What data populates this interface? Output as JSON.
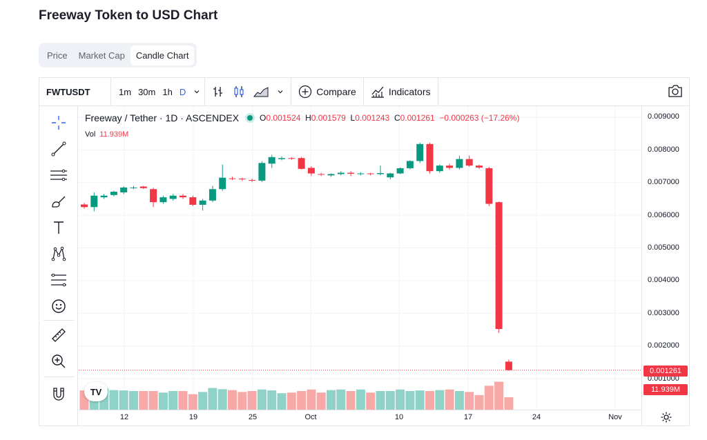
{
  "page": {
    "title": "Freeway Token to USD Chart"
  },
  "tabs": [
    {
      "label": "Price",
      "active": false
    },
    {
      "label": "Market Cap",
      "active": false
    },
    {
      "label": "Candle Chart",
      "active": true
    }
  ],
  "toolbar": {
    "symbol": "FWTUSDT",
    "timeframes": [
      "1m",
      "30m",
      "1h",
      "D"
    ],
    "active_timeframe": "D",
    "compare_label": "Compare",
    "indicators_label": "Indicators"
  },
  "legend": {
    "symbol": "Freeway / Tether · 1D · ASCENDEX",
    "o_key": "O",
    "o": "0.001524",
    "h_key": "H",
    "h": "0.001579",
    "l_key": "L",
    "l": "0.001243",
    "c_key": "C",
    "c": "0.001261",
    "change": "−0.000263 (−17.26%)",
    "vol_label": "Vol",
    "vol_value": "11.939M"
  },
  "price_axis": {
    "labels": [
      "0.009000",
      "0.008000",
      "0.007000",
      "0.006000",
      "0.005000",
      "0.004000",
      "0.003000",
      "0.002000",
      "0.001000"
    ],
    "last_price": "0.001261",
    "last_volume": "11.939M"
  },
  "time_axis": {
    "labels": [
      "12",
      "19",
      "25",
      "Oct",
      "10",
      "17",
      "24",
      "Nov"
    ]
  },
  "logo_text": "TV",
  "colors": {
    "up": "#089981",
    "down": "#f23645",
    "vol_up": "#8fd3c8",
    "vol_down": "#f7a9a7",
    "accent": "#2962ff"
  },
  "chart_data": {
    "type": "candlestick",
    "ylim": [
      0,
      0.0095
    ],
    "candles": [
      {
        "o": 0.00633,
        "h": 0.00638,
        "l": 0.0062,
        "c": 0.00625
      },
      {
        "o": 0.00625,
        "h": 0.0067,
        "l": 0.00612,
        "c": 0.0066
      },
      {
        "o": 0.00655,
        "h": 0.00665,
        "l": 0.0065,
        "c": 0.0066
      },
      {
        "o": 0.00662,
        "h": 0.00675,
        "l": 0.00658,
        "c": 0.00672
      },
      {
        "o": 0.0067,
        "h": 0.00688,
        "l": 0.00665,
        "c": 0.00685
      },
      {
        "o": 0.00685,
        "h": 0.0069,
        "l": 0.0068,
        "c": 0.00685
      },
      {
        "o": 0.00688,
        "h": 0.0069,
        "l": 0.0068,
        "c": 0.00683
      },
      {
        "o": 0.0068,
        "h": 0.00684,
        "l": 0.00625,
        "c": 0.0064
      },
      {
        "o": 0.0064,
        "h": 0.0066,
        "l": 0.00635,
        "c": 0.00655
      },
      {
        "o": 0.0065,
        "h": 0.00665,
        "l": 0.00645,
        "c": 0.0066
      },
      {
        "o": 0.0066,
        "h": 0.00665,
        "l": 0.0065,
        "c": 0.00655
      },
      {
        "o": 0.00655,
        "h": 0.0066,
        "l": 0.00628,
        "c": 0.00632
      },
      {
        "o": 0.00632,
        "h": 0.0065,
        "l": 0.00615,
        "c": 0.00645
      },
      {
        "o": 0.00645,
        "h": 0.0069,
        "l": 0.0064,
        "c": 0.0068
      },
      {
        "o": 0.0068,
        "h": 0.00755,
        "l": 0.00675,
        "c": 0.00715
      },
      {
        "o": 0.00713,
        "h": 0.00718,
        "l": 0.00708,
        "c": 0.00712
      },
      {
        "o": 0.00712,
        "h": 0.00715,
        "l": 0.00705,
        "c": 0.0071
      },
      {
        "o": 0.00708,
        "h": 0.00712,
        "l": 0.00702,
        "c": 0.00706
      },
      {
        "o": 0.00706,
        "h": 0.00765,
        "l": 0.00702,
        "c": 0.0076
      },
      {
        "o": 0.00758,
        "h": 0.00785,
        "l": 0.00745,
        "c": 0.00778
      },
      {
        "o": 0.00772,
        "h": 0.0078,
        "l": 0.00768,
        "c": 0.00775
      },
      {
        "o": 0.00775,
        "h": 0.00778,
        "l": 0.0077,
        "c": 0.00774
      },
      {
        "o": 0.00775,
        "h": 0.00778,
        "l": 0.0074,
        "c": 0.00742
      },
      {
        "o": 0.00745,
        "h": 0.0075,
        "l": 0.0072,
        "c": 0.00728
      },
      {
        "o": 0.00726,
        "h": 0.0073,
        "l": 0.0072,
        "c": 0.00724
      },
      {
        "o": 0.00722,
        "h": 0.00728,
        "l": 0.00718,
        "c": 0.00726
      },
      {
        "o": 0.00726,
        "h": 0.00735,
        "l": 0.00722,
        "c": 0.0073
      },
      {
        "o": 0.0073,
        "h": 0.00735,
        "l": 0.0072,
        "c": 0.00727
      },
      {
        "o": 0.00727,
        "h": 0.00732,
        "l": 0.00722,
        "c": 0.00728
      },
      {
        "o": 0.00728,
        "h": 0.0073,
        "l": 0.00722,
        "c": 0.00726
      },
      {
        "o": 0.00726,
        "h": 0.00752,
        "l": 0.00722,
        "c": 0.00729
      },
      {
        "o": 0.00716,
        "h": 0.0073,
        "l": 0.0071,
        "c": 0.00728
      },
      {
        "o": 0.00728,
        "h": 0.00746,
        "l": 0.00726,
        "c": 0.00744
      },
      {
        "o": 0.00744,
        "h": 0.00768,
        "l": 0.0074,
        "c": 0.00766
      },
      {
        "o": 0.00766,
        "h": 0.00822,
        "l": 0.0076,
        "c": 0.00818
      },
      {
        "o": 0.00818,
        "h": 0.00822,
        "l": 0.00728,
        "c": 0.00735
      },
      {
        "o": 0.00735,
        "h": 0.00755,
        "l": 0.0073,
        "c": 0.00752
      },
      {
        "o": 0.00752,
        "h": 0.00758,
        "l": 0.0074,
        "c": 0.00745
      },
      {
        "o": 0.00745,
        "h": 0.00782,
        "l": 0.0074,
        "c": 0.00772
      },
      {
        "o": 0.00772,
        "h": 0.00783,
        "l": 0.00748,
        "c": 0.00752
      },
      {
        "o": 0.00752,
        "h": 0.00755,
        "l": 0.00742,
        "c": 0.00746
      },
      {
        "o": 0.00744,
        "h": 0.00748,
        "l": 0.00628,
        "c": 0.00635
      },
      {
        "o": 0.0064,
        "h": 0.00642,
        "l": 0.0024,
        "c": 0.00252
      },
      {
        "o": 0.00152,
        "h": 0.00158,
        "l": 0.00124,
        "c": 0.00126
      }
    ],
    "volumes_rel": [
      0.62,
      0.8,
      0.68,
      0.63,
      0.62,
      0.6,
      0.6,
      0.6,
      0.55,
      0.6,
      0.6,
      0.5,
      0.57,
      0.7,
      0.66,
      0.63,
      0.57,
      0.6,
      0.65,
      0.62,
      0.53,
      0.55,
      0.6,
      0.65,
      0.55,
      0.63,
      0.65,
      0.6,
      0.65,
      0.55,
      0.6,
      0.6,
      0.65,
      0.6,
      0.62,
      0.6,
      0.63,
      0.65,
      0.6,
      0.57,
      0.47,
      0.77,
      0.9,
      0.4
    ]
  }
}
